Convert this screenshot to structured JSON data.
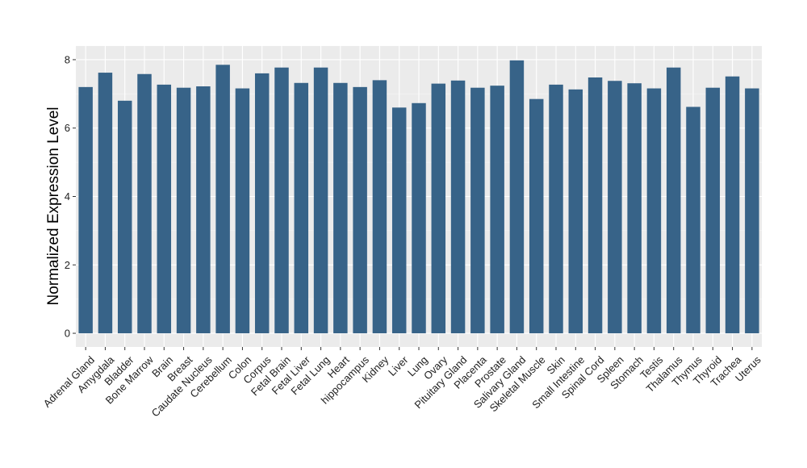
{
  "colors": {
    "bar": "#376388",
    "panel": "#ebebeb",
    "background": "#ffffff"
  },
  "chart_data": {
    "type": "bar",
    "title": "",
    "xlabel": "",
    "ylabel": "Normalized Expression Level",
    "ylim": [
      -0.4,
      8.4
    ],
    "yticks": [
      0,
      2,
      4,
      6,
      8
    ],
    "grid": true,
    "legend": "none",
    "categories": [
      "Adrenal Gland",
      "Amygdala",
      "Bladder",
      "Bone Marrow",
      "Brain",
      "Breast",
      "Caudate Nucleus",
      "Cerebellum",
      "Colon",
      "Corpus",
      "Fetal Brain",
      "Fetal Liver",
      "Fetal Lung",
      "Heart",
      "hippocampus",
      "Kidney",
      "Liver",
      "Lung",
      "Ovary",
      "Pituitary Gland",
      "Placenta",
      "Prostate",
      "Salivary Gland",
      "Skeletal Muscle",
      "Skin",
      "Small Intestine",
      "Spinal Cord",
      "Spleen",
      "Stomach",
      "Testis",
      "Thalamus",
      "Thymus",
      "Thyroid",
      "Trachea",
      "Uterus"
    ],
    "values": [
      7.2,
      7.62,
      6.8,
      7.58,
      7.27,
      7.18,
      7.22,
      7.85,
      7.16,
      7.6,
      7.77,
      7.32,
      7.77,
      7.32,
      7.2,
      7.4,
      6.6,
      6.73,
      7.3,
      7.39,
      7.18,
      7.24,
      7.98,
      6.85,
      7.27,
      7.13,
      7.48,
      7.38,
      7.31,
      7.16,
      7.77,
      6.62,
      7.18,
      7.51,
      7.16
    ]
  }
}
